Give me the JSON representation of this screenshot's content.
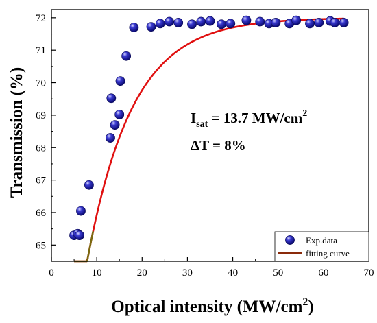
{
  "chart_data": {
    "type": "scatter",
    "xlabel": "Optical intensity (MW/cm",
    "xlabel_sup": "2",
    "xlabel_tail": ")",
    "ylabel": "Transmission (%)",
    "xlim": [
      0,
      70
    ],
    "ylim": [
      64.5,
      72.25
    ],
    "x_ticks": [
      0,
      10,
      20,
      30,
      40,
      50,
      60,
      70
    ],
    "y_ticks": [
      65,
      66,
      67,
      68,
      69,
      70,
      71,
      72
    ],
    "grid": false,
    "legend_position": "bottom-right",
    "annotations": {
      "isat_main": "I",
      "isat_sub": "sat",
      "isat_value": " = 13.7 MW/cm",
      "isat_sup": "2",
      "delta_t": "ΔT = 8%"
    },
    "series": [
      {
        "name": "Exp.data",
        "kind": "scatter",
        "color": "#1a1aa0",
        "x": [
          5.0,
          5.8,
          6.2,
          6.5,
          8.3,
          13.0,
          13.2,
          14.0,
          15.0,
          15.2,
          16.5,
          18.2,
          22.0,
          24.0,
          26.0,
          28.0,
          31.0,
          33.0,
          35.0,
          37.5,
          39.5,
          43.0,
          46.0,
          48.0,
          49.5,
          52.5,
          54.0,
          57.0,
          59.0,
          61.5,
          62.5,
          64.5
        ],
        "y": [
          65.3,
          65.35,
          65.3,
          66.05,
          66.85,
          68.3,
          69.52,
          68.7,
          69.02,
          70.05,
          70.82,
          71.7,
          71.72,
          71.82,
          71.88,
          71.85,
          71.8,
          71.88,
          71.9,
          71.8,
          71.82,
          71.92,
          71.88,
          71.82,
          71.85,
          71.82,
          71.92,
          71.82,
          71.85,
          71.9,
          71.85,
          71.85
        ]
      },
      {
        "name": "fitting curve",
        "kind": "line",
        "color": "#e01010",
        "model": {
          "ymax": 72.0,
          "amplitude": 16.5,
          "rate": 0.1
        }
      }
    ]
  }
}
